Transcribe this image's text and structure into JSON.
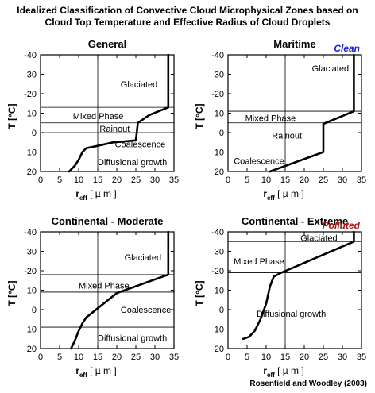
{
  "figure": {
    "title_line1": "Idealized Classification of Convective Cloud Microphysical Zones based on",
    "title_line2": "Cloud Top Temperature and Effective Radius of Cloud Droplets",
    "credit": "Rosenfield and Woodley (2003)"
  },
  "chart_data": [
    {
      "type": "line",
      "title": "General",
      "tag": "",
      "tag_color": "",
      "xlabel_main": "r",
      "xlabel_sub": "eff",
      "xlabel_units": "[ µ m ]",
      "ylabel": "T [°C]",
      "xlim": [
        0,
        35
      ],
      "ylim": [
        20,
        -40
      ],
      "x_ticks": [
        0,
        5,
        10,
        15,
        20,
        25,
        30,
        35
      ],
      "y_ticks": [
        -40,
        -30,
        -20,
        -10,
        0,
        10,
        20
      ],
      "grid": false,
      "zone_boundaries": [
        -13,
        -5,
        0,
        10
      ],
      "zones": [
        {
          "label": "Glaciated",
          "x": 21,
          "y": -25
        },
        {
          "label": "Mixed Phase",
          "x": 8.5,
          "y": -8.5
        },
        {
          "label": "Rainout",
          "x": 15.5,
          "y": -2
        },
        {
          "label": "Coalescence",
          "x": 19.5,
          "y": 6
        },
        {
          "label": "Diffusional growth",
          "x": 15,
          "y": 15
        }
      ],
      "series": [
        {
          "x": [
            7.5,
            9,
            10,
            11,
            12,
            14.5,
            19,
            25,
            25.5,
            25.5,
            28.5,
            33.5,
            33.5
          ],
          "y": [
            20,
            17,
            14,
            10,
            8,
            7,
            5,
            4,
            -4.5,
            -5,
            -9,
            -13,
            -40
          ]
        }
      ]
    },
    {
      "type": "line",
      "title": "Maritime",
      "tag": "Clean",
      "tag_color": "#1f1fd6",
      "xlabel_main": "r",
      "xlabel_sub": "eff",
      "xlabel_units": "[ µ m ]",
      "ylabel": "T [°C]",
      "xlim": [
        0,
        35
      ],
      "ylim": [
        20,
        -40
      ],
      "x_ticks": [
        0,
        5,
        10,
        15,
        20,
        25,
        30,
        35
      ],
      "y_ticks": [
        -40,
        -30,
        -20,
        -10,
        0,
        10,
        20
      ],
      "grid": false,
      "zone_boundaries": [
        -11,
        -5,
        10
      ],
      "zones": [
        {
          "label": "Glaciated",
          "x": 22,
          "y": -33
        },
        {
          "label": "Mixed Phase",
          "x": 4.5,
          "y": -7.5
        },
        {
          "label": "Rainout",
          "x": 11.5,
          "y": 1.5
        },
        {
          "label": "Coalescence",
          "x": 1.5,
          "y": 14.5
        }
      ],
      "series": [
        {
          "x": [
            11,
            25,
            25,
            33,
            33
          ],
          "y": [
            20,
            10,
            -4.5,
            -11,
            -40
          ]
        }
      ]
    },
    {
      "type": "line",
      "title": "Continental - Moderate",
      "tag": "",
      "tag_color": "",
      "xlabel_main": "r",
      "xlabel_sub": "eff",
      "xlabel_units": "[ µ m ]",
      "ylabel": "T [°C]",
      "xlim": [
        0,
        35
      ],
      "ylim": [
        20,
        -40
      ],
      "x_ticks": [
        0,
        5,
        10,
        15,
        20,
        25,
        30,
        35
      ],
      "y_ticks": [
        -40,
        -30,
        -20,
        -10,
        0,
        10,
        20
      ],
      "grid": false,
      "zone_boundaries": [
        -18,
        -9,
        9
      ],
      "zones": [
        {
          "label": "Glaciated",
          "x": 22,
          "y": -27
        },
        {
          "label": "Mixed Phase",
          "x": 10,
          "y": -12.5
        },
        {
          "label": "Coalescence",
          "x": 21,
          "y": 0
        },
        {
          "label": "Diffusional growth",
          "x": 15,
          "y": 14.5
        }
      ],
      "series": [
        {
          "x": [
            8,
            9,
            10,
            11,
            12,
            20,
            33.5,
            33.5
          ],
          "y": [
            20,
            16,
            11,
            7,
            4,
            -8.5,
            -18,
            -40
          ]
        }
      ]
    },
    {
      "type": "line",
      "title": "Continental - Extreme",
      "tag": "Polluted",
      "tag_color": "#b01515",
      "xlabel_main": "r",
      "xlabel_sub": "eff",
      "xlabel_units": "[ µ m ]",
      "ylabel": "T [°C]",
      "xlim": [
        0,
        35
      ],
      "ylim": [
        20,
        -40
      ],
      "x_ticks": [
        0,
        5,
        10,
        15,
        20,
        25,
        30,
        35
      ],
      "y_ticks": [
        -40,
        -30,
        -20,
        -10,
        0,
        10,
        20
      ],
      "grid": false,
      "zone_boundaries": [
        -35,
        -19
      ],
      "zones": [
        {
          "label": "Glaciated",
          "x": 19,
          "y": -37
        },
        {
          "label": "Mixed Phase",
          "x": 1.5,
          "y": -25
        },
        {
          "label": "Diffusional growth",
          "x": 7.5,
          "y": 2
        }
      ],
      "series": [
        {
          "x": [
            4,
            5.5,
            7,
            8.5,
            10,
            11,
            12,
            14,
            33,
            33
          ],
          "y": [
            15,
            14,
            11,
            5,
            -3,
            -12,
            -17,
            -19,
            -35,
            -40
          ]
        }
      ]
    }
  ]
}
